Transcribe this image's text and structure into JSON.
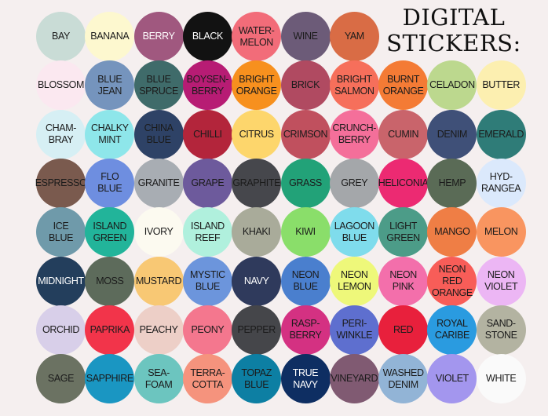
{
  "title": {
    "line1": "DIGITAL",
    "line2": "STICKERS:"
  },
  "swatches": [
    [
      {
        "label": "BAY",
        "color": "#c9dcd6"
      },
      {
        "label": "BANANA",
        "color": "#fdf8cf"
      },
      {
        "label": "BERRY",
        "color": "#a0587f",
        "text": "#ffffff"
      },
      {
        "label": "BLACK",
        "color": "#121212",
        "text": "#ffffff"
      },
      {
        "label": "WATER-\nMELON",
        "color": "#f26c79"
      },
      {
        "label": "WINE",
        "color": "#6c5b78"
      },
      {
        "label": "YAM",
        "color": "#d96c45"
      }
    ],
    [
      {
        "label": "BLOSSOM",
        "color": "#fbe8f0"
      },
      {
        "label": "BLUE\nJEAN",
        "color": "#7594bd"
      },
      {
        "label": "BLUE\nSPRUCE",
        "color": "#3f6b6a"
      },
      {
        "label": "BOYSEN-\nBERRY",
        "color": "#b71c74"
      },
      {
        "label": "BRIGHT\nORANGE",
        "color": "#f7901e"
      },
      {
        "label": "BRICK",
        "color": "#b04a61"
      },
      {
        "label": "BRIGHT\nSALMON",
        "color": "#f66f5b"
      },
      {
        "label": "BURNT\nORANGE",
        "color": "#f47b35"
      },
      {
        "label": "CELADON",
        "color": "#bcd88e"
      },
      {
        "label": "BUTTER",
        "color": "#fcefb0"
      }
    ],
    [
      {
        "label": "CHAM-\nBRAY",
        "color": "#d6eff4"
      },
      {
        "label": "CHALKY\nMINT",
        "color": "#8ee6ea"
      },
      {
        "label": "CHINA\nBLUE",
        "color": "#2e4266"
      },
      {
        "label": "CHILLI",
        "color": "#b3253b"
      },
      {
        "label": "CITRUS",
        "color": "#fdd66c"
      },
      {
        "label": "CRIMSON",
        "color": "#c0505e"
      },
      {
        "label": "CRUNCH-\nBERRY",
        "color": "#f46f9a"
      },
      {
        "label": "CUMIN",
        "color": "#c9646b"
      },
      {
        "label": "DENIM",
        "color": "#3f5078"
      },
      {
        "label": "EMERALD",
        "color": "#2f7c78"
      }
    ],
    [
      {
        "label": "ESPRESSO",
        "color": "#7a5a4e"
      },
      {
        "label": "FLO\nBLUE",
        "color": "#6e8ee0"
      },
      {
        "label": "GRANITE",
        "color": "#a8adb3"
      },
      {
        "label": "GRAPE",
        "color": "#6d5a9c"
      },
      {
        "label": "GRAPHITE",
        "color": "#46474c"
      },
      {
        "label": "GRASS",
        "color": "#22a278"
      },
      {
        "label": "GREY",
        "color": "#a4a7aa"
      },
      {
        "label": "HELICONIA",
        "color": "#ec2a72"
      },
      {
        "label": "HEMP",
        "color": "#5a6b56"
      },
      {
        "label": "HYD-\nRANGEA",
        "color": "#dbe9fc"
      }
    ],
    [
      {
        "label": "ICE\nBLUE",
        "color": "#6f9aaa"
      },
      {
        "label": "ISLAND\nGREEN",
        "color": "#22b49a"
      },
      {
        "label": "IVORY",
        "color": "#fcfaf0"
      },
      {
        "label": "ISLAND\nREEF",
        "color": "#b0f0dd"
      },
      {
        "label": "KHAKI",
        "color": "#a9ab9a"
      },
      {
        "label": "KIWI",
        "color": "#8ade6a"
      },
      {
        "label": "LAGOON\nBLUE",
        "color": "#7fdcec"
      },
      {
        "label": "LIGHT\nGREEN",
        "color": "#4c9c88"
      },
      {
        "label": "MANGO",
        "color": "#ef7e45"
      },
      {
        "label": "MELON",
        "color": "#f99560"
      }
    ],
    [
      {
        "label": "MIDNIGHT",
        "color": "#233e5c",
        "text": "#ffffff"
      },
      {
        "label": "MOSS",
        "color": "#5d6b5b"
      },
      {
        "label": "MUSTARD",
        "color": "#f8c874"
      },
      {
        "label": "MYSTIC\nBLUE",
        "color": "#6c95dc"
      },
      {
        "label": "NAVY",
        "color": "#2f3a5c",
        "text": "#ffffff"
      },
      {
        "label": "NEON\nBLUE",
        "color": "#4a7fce"
      },
      {
        "label": "NEON\nLEMON",
        "color": "#eef87a"
      },
      {
        "label": "NEON\nPINK",
        "color": "#f36fab"
      },
      {
        "label": "NEON\nRED\nORANGE",
        "color": "#f85d58"
      },
      {
        "label": "NEON\nVIOLET",
        "color": "#ecb6f4"
      }
    ],
    [
      {
        "label": "ORCHID",
        "color": "#d8cfe9"
      },
      {
        "label": "PAPRIKA",
        "color": "#f2344a"
      },
      {
        "label": "PEACHY",
        "color": "#edcfc7"
      },
      {
        "label": "PEONY",
        "color": "#f4778e"
      },
      {
        "label": "PEPPER",
        "color": "#45464a"
      },
      {
        "label": "RASP-\nBERRY",
        "color": "#d43182"
      },
      {
        "label": "PERI-\nWINKLE",
        "color": "#5e6fcf"
      },
      {
        "label": "RED",
        "color": "#e8203c"
      },
      {
        "label": "ROYAL\nCARIBE",
        "color": "#2a9be0"
      },
      {
        "label": "SAND-\nSTONE",
        "color": "#b3b3a1"
      }
    ],
    [
      {
        "label": "SAGE",
        "color": "#6b7262"
      },
      {
        "label": "SAPPHIRE",
        "color": "#1a96c2"
      },
      {
        "label": "SEA-\nFOAM",
        "color": "#6cc5bf"
      },
      {
        "label": "TERRA-\nCOTTA",
        "color": "#f5937d"
      },
      {
        "label": "TOPAZ\nBLUE",
        "color": "#0d7fa3"
      },
      {
        "label": "TRUE\nNAVY",
        "color": "#0e2e62",
        "text": "#ffffff"
      },
      {
        "label": "VINEYARD",
        "color": "#805a72"
      },
      {
        "label": "WASHED\nDENIM",
        "color": "#92b4d6"
      },
      {
        "label": "VIOLET",
        "color": "#a396ee"
      },
      {
        "label": "WHITE",
        "color": "#fafafa"
      }
    ]
  ]
}
